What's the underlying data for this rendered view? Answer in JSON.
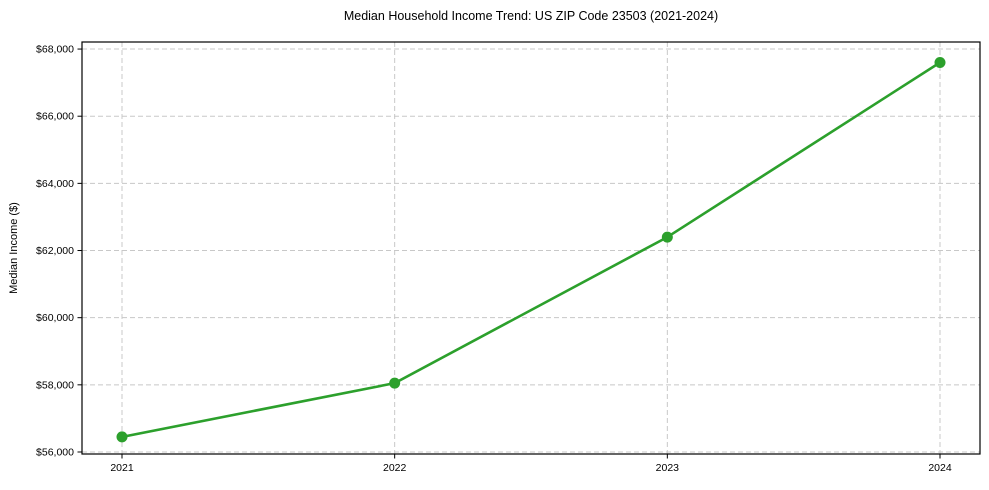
{
  "chart_data": {
    "type": "line",
    "title": "Median Household Income Trend: US ZIP Code 23503 (2021-2024)",
    "xlabel": "",
    "ylabel": "Median Income ($)",
    "categories": [
      "2021",
      "2022",
      "2023",
      "2024"
    ],
    "series": [
      {
        "name": "Median Household Income",
        "values": [
          56450,
          58050,
          62400,
          67600
        ]
      }
    ],
    "yticks": [
      56000,
      58000,
      60000,
      62000,
      64000,
      66000,
      68000
    ],
    "ytick_labels": [
      "$56,000",
      "$58,000",
      "$60,000",
      "$62,000",
      "$64,000",
      "$66,000",
      "$68,000"
    ],
    "ylim": [
      55940,
      68210
    ],
    "grid": true,
    "legend": "none",
    "colors": {
      "line": "#2ca02c",
      "marker": "#2ca02c",
      "grid": "#c8c8c8",
      "axis": "#000000",
      "text": "#000000"
    }
  }
}
